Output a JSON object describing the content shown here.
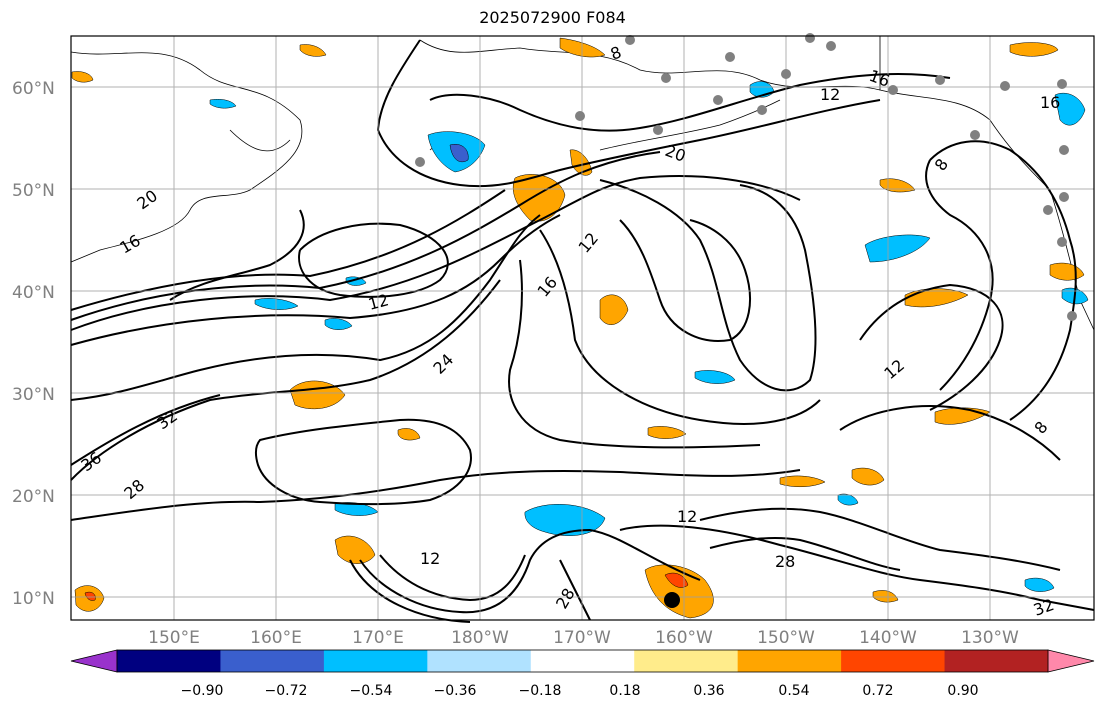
{
  "title": "2025072900 F084",
  "map": {
    "lat_labels": [
      "60°N",
      "50°N",
      "40°N",
      "30°N",
      "20°N",
      "10°N"
    ],
    "lon_labels": [
      "150°E",
      "160°E",
      "170°E",
      "180°W",
      "170°W",
      "160°W",
      "150°W",
      "140°W",
      "130°W"
    ],
    "contour_labels": [
      "8",
      "16",
      "12",
      "16",
      "20",
      "20",
      "16",
      "12",
      "16",
      "12",
      "24",
      "32",
      "36",
      "28",
      "12",
      "28",
      "12",
      "28",
      "32",
      "12",
      "8",
      "8"
    ]
  },
  "colorbar": {
    "ticks": [
      "−0.90",
      "−0.72",
      "−0.54",
      "−0.36",
      "−0.18",
      "0.18",
      "0.36",
      "0.54",
      "0.72",
      "0.90"
    ],
    "colors": [
      "#9932cc",
      "#000080",
      "#3a5fcd",
      "#00bfff",
      "#b0e2ff",
      "#ffffff",
      "#ffec8b",
      "#ffa500",
      "#ff4500",
      "#b22222",
      "#ff88aa"
    ]
  }
}
